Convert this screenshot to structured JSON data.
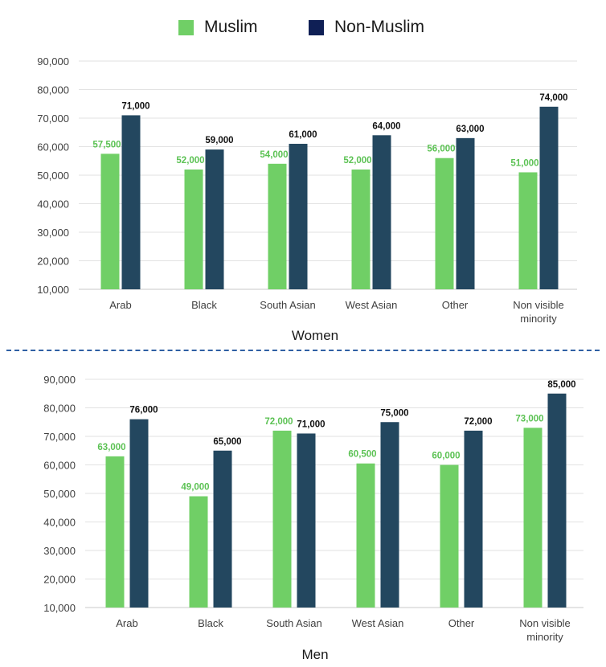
{
  "legend": {
    "muslim_label": "Muslim",
    "nonmuslim_label": "Non-Muslim"
  },
  "colors": {
    "muslim": "#70cf66",
    "nonmuslim": "#23475f",
    "muslim_label_text": "#5cc254",
    "nonmuslim_label_text": "#111111",
    "legend_nonmuslim": "#0f1f55"
  },
  "chart_data": [
    {
      "type": "bar",
      "title": "Women",
      "categories": [
        [
          "Arab"
        ],
        [
          "Black"
        ],
        [
          "South Asian"
        ],
        [
          "West Asian"
        ],
        [
          "Other"
        ],
        [
          "Non visible",
          "minority"
        ]
      ],
      "series": [
        {
          "name": "Muslim",
          "values": [
            57500,
            52000,
            54000,
            52000,
            56000,
            51000
          ],
          "labels": [
            "57,500",
            "52,000",
            "54,000",
            "52,000",
            "56,000",
            "51,000"
          ]
        },
        {
          "name": "Non-Muslim",
          "values": [
            71000,
            59000,
            61000,
            64000,
            63000,
            74000
          ],
          "labels": [
            "71,000",
            "59,000",
            "61,000",
            "64,000",
            "63,000",
            "74,000"
          ]
        }
      ],
      "ylim": [
        10000,
        90000
      ],
      "yticks": [
        "10,000",
        "20,000",
        "30,000",
        "40,000",
        "50,000",
        "60,000",
        "70,000",
        "80,000",
        "90,000"
      ],
      "grid": true,
      "legend": "top-center"
    },
    {
      "type": "bar",
      "title": "Men",
      "categories": [
        [
          "Arab"
        ],
        [
          "Black"
        ],
        [
          "South Asian"
        ],
        [
          "West Asian"
        ],
        [
          "Other"
        ],
        [
          "Non visible",
          "minority"
        ]
      ],
      "series": [
        {
          "name": "Muslim",
          "values": [
            63000,
            49000,
            72000,
            60500,
            60000,
            73000
          ],
          "labels": [
            "63,000",
            "49,000",
            "72,000",
            "60,500",
            "60,000",
            "73,000"
          ]
        },
        {
          "name": "Non-Muslim",
          "values": [
            76000,
            65000,
            71000,
            75000,
            72000,
            85000
          ],
          "labels": [
            "76,000",
            "65,000",
            "71,000",
            "75,000",
            "72,000",
            "85,000"
          ]
        }
      ],
      "ylim": [
        10000,
        90000
      ],
      "yticks": [
        "10,000",
        "20,000",
        "30,000",
        "40,000",
        "50,000",
        "60,000",
        "70,000",
        "80,000",
        "90,000"
      ],
      "grid": true,
      "legend": "top-center"
    }
  ]
}
